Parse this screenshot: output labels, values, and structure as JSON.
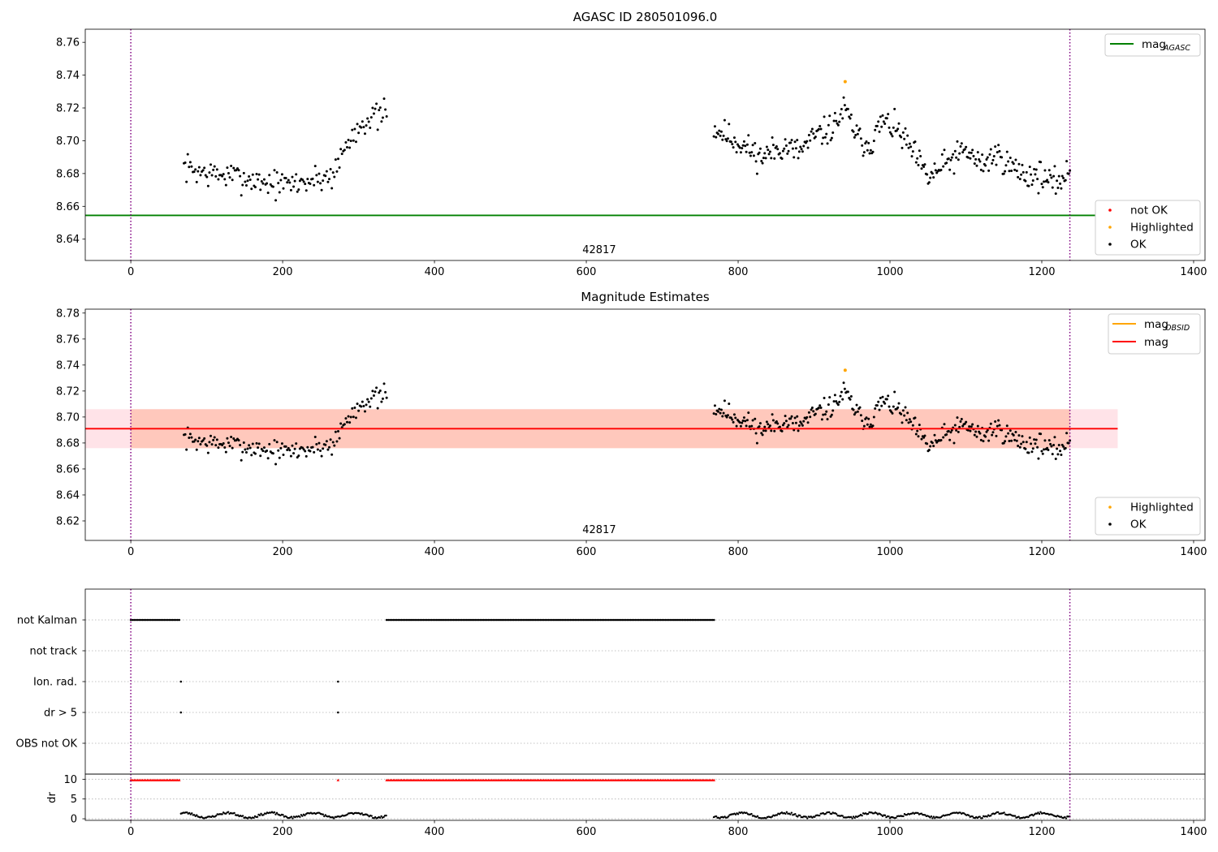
{
  "chart_data": [
    {
      "type": "scatter",
      "title": "AGASC ID 280501096.0",
      "xlim": [
        -60,
        1415
      ],
      "ylim": [
        8.627,
        8.768
      ],
      "xticks": [
        0,
        200,
        400,
        600,
        800,
        1000,
        1200,
        1400
      ],
      "yticks": [
        8.64,
        8.66,
        8.68,
        8.7,
        8.72,
        8.74,
        8.76
      ],
      "ytick_labels": [
        "8.64",
        "8.66",
        "8.68",
        "8.70",
        "8.72",
        "8.74",
        "8.76"
      ],
      "obs_label": "42817",
      "vlines": [
        0,
        1237
      ],
      "hline": {
        "name": "mag_AGASC",
        "label_main": "mag",
        "label_sub": "AGASC",
        "value": 8.6545,
        "x_end": 1300,
        "color": "#008000"
      },
      "legend_lines": [
        {
          "label_main": "mag",
          "label_sub": "AGASC",
          "color": "#008000"
        }
      ],
      "legend_points": [
        {
          "label": "not OK",
          "color": "#ff0000"
        },
        {
          "label": "Highlighted",
          "color": "#ffa500"
        },
        {
          "label": "OK",
          "color": "#000000"
        }
      ],
      "highlighted": [
        {
          "x": 941,
          "y": 8.736
        }
      ],
      "series_segments": [
        {
          "x0": 70,
          "x1": 337,
          "n": 160,
          "anchors": [
            [
              70,
              8.684
            ],
            [
              100,
              8.68
            ],
            [
              140,
              8.678
            ],
            [
              200,
              8.673
            ],
            [
              240,
              8.676
            ],
            [
              265,
              8.679
            ],
            [
              285,
              8.698
            ],
            [
              305,
              8.712
            ],
            [
              320,
              8.714
            ],
            [
              337,
              8.716
            ]
          ],
          "noise": 0.0085,
          "seed": 7
        },
        {
          "x0": 768,
          "x1": 1237,
          "n": 330,
          "anchors": [
            [
              768,
              8.708
            ],
            [
              800,
              8.699
            ],
            [
              830,
              8.69
            ],
            [
              860,
              8.697
            ],
            [
              880,
              8.693
            ],
            [
              900,
              8.702
            ],
            [
              925,
              8.708
            ],
            [
              940,
              8.719
            ],
            [
              960,
              8.7
            ],
            [
              975,
              8.698
            ],
            [
              990,
              8.712
            ],
            [
              1010,
              8.706
            ],
            [
              1030,
              8.693
            ],
            [
              1050,
              8.677
            ],
            [
              1080,
              8.688
            ],
            [
              1100,
              8.694
            ],
            [
              1120,
              8.685
            ],
            [
              1140,
              8.692
            ],
            [
              1160,
              8.684
            ],
            [
              1180,
              8.679
            ],
            [
              1200,
              8.679
            ],
            [
              1215,
              8.673
            ],
            [
              1237,
              8.681
            ]
          ],
          "noise": 0.0085,
          "seed": 11
        }
      ]
    },
    {
      "type": "scatter",
      "title": "Magnitude Estimates",
      "xlim": [
        -60,
        1415
      ],
      "ylim": [
        8.605,
        8.783
      ],
      "xticks": [
        0,
        200,
        400,
        600,
        800,
        1000,
        1200,
        1400
      ],
      "yticks": [
        8.62,
        8.64,
        8.66,
        8.68,
        8.7,
        8.72,
        8.74,
        8.76,
        8.78
      ],
      "ytick_labels": [
        "8.62",
        "8.64",
        "8.66",
        "8.68",
        "8.70",
        "8.72",
        "8.74",
        "8.76",
        "8.78"
      ],
      "obs_label": "42817",
      "vlines": [
        0,
        1237
      ],
      "mag": {
        "value": 8.691,
        "x0": 0,
        "x1": 1300,
        "band_low": 8.676,
        "band_high": 8.706,
        "color": "#ff0000",
        "band_color": "#ffc0cb"
      },
      "mag_obsid": {
        "value": 8.691,
        "x0": 0,
        "x1": 1237,
        "band_low": 8.676,
        "band_high": 8.706,
        "color": "#ffa500",
        "band_color": "#ffa07a"
      },
      "legend_lines": [
        {
          "label_main": "mag",
          "label_sub": "OBSID",
          "color": "#ffa500"
        },
        {
          "label_main": "mag",
          "label_sub": "",
          "color": "#ff0000"
        }
      ],
      "legend_points": [
        {
          "label": "Highlighted",
          "color": "#ffa500"
        },
        {
          "label": "OK",
          "color": "#000000"
        }
      ],
      "highlighted": [
        {
          "x": 941,
          "y": 8.736
        }
      ]
    },
    {
      "type": "scatter",
      "title": "",
      "xlim": [
        -60,
        1415
      ],
      "category_labels": [
        "not Kalman",
        "not track",
        "Ion. rad.",
        "dr > 5",
        "OBS not OK"
      ],
      "vlines": [
        0,
        1237
      ],
      "flags": [
        {
          "category": "not Kalman",
          "ranges": [
            [
              0,
              66
            ],
            [
              337,
              770
            ]
          ],
          "points": []
        },
        {
          "category": "not track",
          "ranges": [],
          "points": []
        },
        {
          "category": "Ion. rad.",
          "ranges": [],
          "points": [
            66,
            273
          ]
        },
        {
          "category": "dr > 5",
          "ranges": [],
          "points": [
            66,
            273
          ]
        },
        {
          "category": "OBS not OK",
          "ranges": [],
          "points": []
        }
      ]
    },
    {
      "type": "scatter",
      "title": "",
      "xlim": [
        -60,
        1415
      ],
      "ylim": [
        -0.4,
        11.3
      ],
      "ylabel": "dr",
      "yticks": [
        0,
        5,
        10
      ],
      "ytick_labels": [
        "0",
        "5",
        "10"
      ],
      "xticks": [
        0,
        200,
        400,
        600,
        800,
        1000,
        1200,
        1400
      ],
      "vlines": [
        0,
        1237
      ],
      "clipped_value": 9.8,
      "clipped_ranges": [
        [
          0,
          66
        ],
        [
          337,
          770
        ]
      ],
      "clipped_points": [
        273
      ],
      "dr_segments": [
        [
          66,
          337
        ],
        [
          768,
          1237
        ]
      ]
    }
  ]
}
